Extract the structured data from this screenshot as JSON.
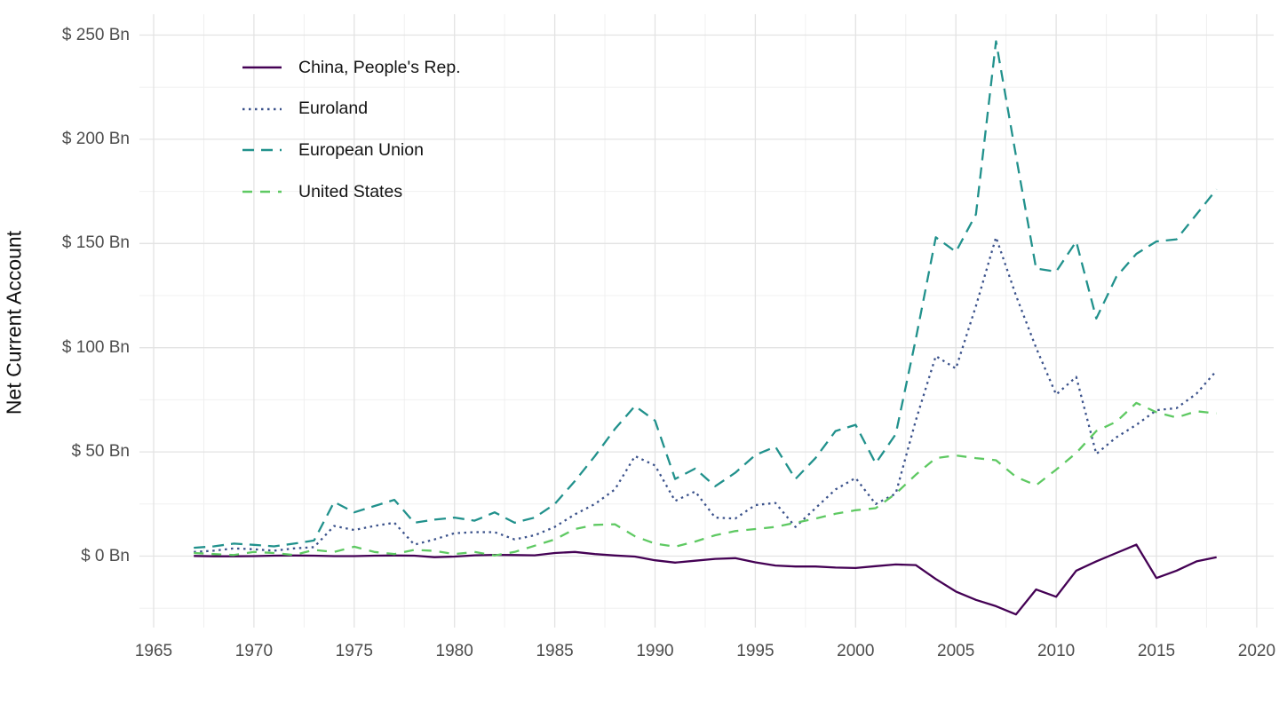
{
  "chart_data": {
    "type": "line",
    "title": "",
    "xlabel": "",
    "ylabel": "Net Current Account",
    "grid": "on",
    "legend_position": "inside-top-left",
    "xlim": [
      1964.3,
      2020.8
    ],
    "ylim": [
      -34,
      260
    ],
    "x_ticks": [
      "1965",
      "1970",
      "1975",
      "1980",
      "1985",
      "1990",
      "1995",
      "2000",
      "2005",
      "2010",
      "2015",
      "2020"
    ],
    "y_ticks": [
      {
        "value": 0,
        "label": "$ 0 Bn"
      },
      {
        "value": 50,
        "label": "$ 50 Bn"
      },
      {
        "value": 100,
        "label": "$ 100 Bn"
      },
      {
        "value": 150,
        "label": "$ 150 Bn"
      },
      {
        "value": 200,
        "label": "$ 200 Bn"
      },
      {
        "value": 250,
        "label": "$ 250 Bn"
      }
    ],
    "x": [
      1967,
      1968,
      1969,
      1970,
      1971,
      1972,
      1973,
      1974,
      1975,
      1976,
      1977,
      1978,
      1979,
      1980,
      1981,
      1982,
      1983,
      1984,
      1985,
      1986,
      1987,
      1988,
      1989,
      1990,
      1991,
      1992,
      1993,
      1994,
      1995,
      1996,
      1997,
      1998,
      1999,
      2000,
      2001,
      2002,
      2003,
      2004,
      2005,
      2006,
      2007,
      2008,
      2009,
      2010,
      2011,
      2012,
      2013,
      2014,
      2015,
      2016,
      2017,
      2018
    ],
    "series": [
      {
        "name": "China, People's Rep.",
        "color": "#440154",
        "dash": "solid",
        "values": [
          0.1,
          -0.1,
          -0.1,
          0,
          0.2,
          0.3,
          0.2,
          0,
          0,
          0.2,
          0.3,
          0.2,
          -0.5,
          -0.2,
          0.4,
          0.6,
          0.5,
          0.4,
          1.5,
          2,
          1,
          0.3,
          -0.2,
          -2,
          -3.1,
          -2.2,
          -1.3,
          -1,
          -3,
          -4.5,
          -5,
          -5,
          -5.5,
          -5.7,
          -4.8,
          -4,
          -4.3,
          -11,
          -17,
          -21,
          -24,
          -28,
          -16,
          -19.5,
          -7,
          -2.5,
          1.5,
          5.5,
          -10.5,
          -7,
          -2.5,
          -0.5
        ]
      },
      {
        "name": "Euroland",
        "color": "#3B528B",
        "dash": "dotted",
        "values": [
          2,
          2.6,
          3.7,
          3.3,
          2.6,
          3.7,
          4.3,
          14.5,
          12.5,
          14.5,
          16,
          5.5,
          8,
          11,
          11.5,
          11.5,
          8,
          10,
          14,
          20,
          25,
          32,
          48,
          43.5,
          26.5,
          31,
          18.5,
          18,
          24.5,
          25.5,
          14,
          23,
          32,
          37.5,
          25,
          30,
          65,
          96,
          90,
          120,
          153,
          125,
          100,
          77.5,
          86,
          49,
          57,
          63,
          70,
          71,
          78,
          89
        ]
      },
      {
        "name": "European Union",
        "color": "#21918C",
        "dash": "dashed",
        "values": [
          4,
          4.7,
          6,
          5.4,
          4.7,
          6,
          7.5,
          26,
          21,
          24,
          27,
          16,
          17.5,
          18.5,
          17,
          21,
          16,
          18.5,
          25,
          36,
          48,
          61,
          72,
          65,
          37,
          42,
          33.5,
          40,
          48.5,
          52.5,
          37,
          47,
          60,
          63,
          44.5,
          58.5,
          104,
          153,
          146,
          164,
          247,
          192,
          138,
          136.5,
          151,
          114,
          134,
          145,
          151,
          152,
          164,
          176
        ]
      },
      {
        "name": "United States",
        "color": "#5EC962",
        "dash": "longdash",
        "values": [
          1.5,
          1,
          0.5,
          2,
          1.5,
          0.5,
          3,
          2,
          4.5,
          2,
          1,
          3,
          2.5,
          1,
          2,
          0.3,
          2,
          5,
          8,
          13,
          15,
          15.3,
          9.5,
          6,
          4.5,
          7,
          10,
          12,
          13,
          14,
          16,
          18,
          20.3,
          22,
          23,
          30,
          39,
          47,
          48.3,
          47,
          46,
          38,
          34,
          41.5,
          49.5,
          60,
          64.5,
          73.5,
          69,
          66.5,
          69.5,
          68.5
        ]
      }
    ],
    "style": {
      "grid_major_color": "#e3e3e3",
      "grid_minor_color": "#f0f0f0",
      "background": "#ffffff",
      "tick_label_color": "#4d4d4d",
      "axis_title_color": "#0f0f0f"
    }
  }
}
